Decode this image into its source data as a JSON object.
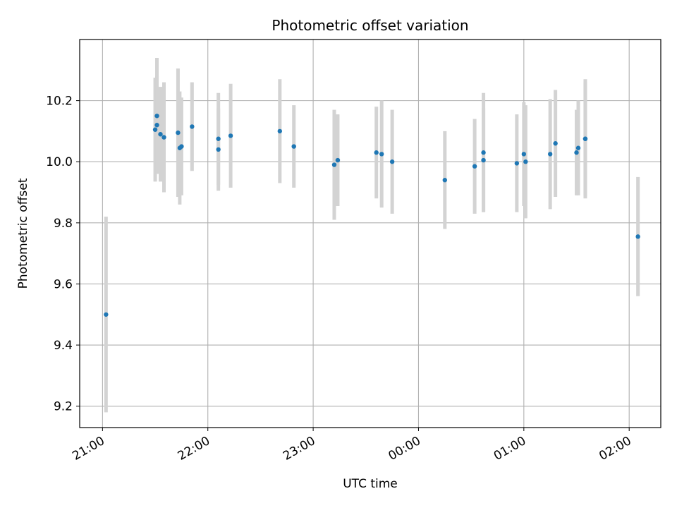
{
  "chart_data": {
    "type": "scatter",
    "title": "Photometric offset variation",
    "xlabel": "UTC time",
    "ylabel": "Photometric offset",
    "xlim": [
      "20:47",
      "02:18"
    ],
    "ylim": [
      9.13,
      10.4
    ],
    "x_ticks": [
      "21:00",
      "22:00",
      "23:00",
      "00:00",
      "01:00",
      "02:00"
    ],
    "y_ticks": [
      9.2,
      9.4,
      9.6,
      9.8,
      10.0,
      10.2
    ],
    "grid": true,
    "point_color": "#1f77b4",
    "errorbar_color": "#d3d3d3",
    "series": [
      {
        "points": [
          {
            "x": "21:02",
            "y": 9.5,
            "err": 0.32
          },
          {
            "x": "21:30",
            "y": 10.105,
            "err": 0.17
          },
          {
            "x": "21:31",
            "y": 10.15,
            "err": 0.19
          },
          {
            "x": "21:31",
            "y": 10.12,
            "err": 0.16
          },
          {
            "x": "21:33",
            "y": 10.09,
            "err": 0.155
          },
          {
            "x": "21:35",
            "y": 10.08,
            "err": 0.18
          },
          {
            "x": "21:43",
            "y": 10.095,
            "err": 0.21
          },
          {
            "x": "21:44",
            "y": 10.045,
            "err": 0.185
          },
          {
            "x": "21:45",
            "y": 10.05,
            "err": 0.16
          },
          {
            "x": "21:51",
            "y": 10.115,
            "err": 0.145
          },
          {
            "x": "22:06",
            "y": 10.04,
            "err": 0.135
          },
          {
            "x": "22:06",
            "y": 10.075,
            "err": 0.15
          },
          {
            "x": "22:13",
            "y": 10.085,
            "err": 0.17
          },
          {
            "x": "22:41",
            "y": 10.1,
            "err": 0.17
          },
          {
            "x": "22:49",
            "y": 10.05,
            "err": 0.135
          },
          {
            "x": "23:12",
            "y": 9.99,
            "err": 0.18
          },
          {
            "x": "23:14",
            "y": 10.005,
            "err": 0.15
          },
          {
            "x": "23:36",
            "y": 10.03,
            "err": 0.15
          },
          {
            "x": "23:39",
            "y": 10.025,
            "err": 0.175
          },
          {
            "x": "23:45",
            "y": 10.0,
            "err": 0.17
          },
          {
            "x": "00:15",
            "y": 9.94,
            "err": 0.16
          },
          {
            "x": "00:32",
            "y": 9.985,
            "err": 0.155
          },
          {
            "x": "00:37",
            "y": 10.03,
            "err": 0.195
          },
          {
            "x": "00:37",
            "y": 10.005,
            "err": 0.17
          },
          {
            "x": "00:56",
            "y": 9.995,
            "err": 0.16
          },
          {
            "x": "01:00",
            "y": 10.025,
            "err": 0.17
          },
          {
            "x": "01:01",
            "y": 10.0,
            "err": 0.185
          },
          {
            "x": "01:15",
            "y": 10.025,
            "err": 0.18
          },
          {
            "x": "01:18",
            "y": 10.06,
            "err": 0.175
          },
          {
            "x": "01:30",
            "y": 10.03,
            "err": 0.14
          },
          {
            "x": "01:31",
            "y": 10.045,
            "err": 0.155
          },
          {
            "x": "01:35",
            "y": 10.075,
            "err": 0.195
          },
          {
            "x": "01:35",
            "y": 10.075,
            "err": 0.185
          },
          {
            "x": "02:05",
            "y": 9.755,
            "err": 0.195
          }
        ]
      }
    ]
  }
}
